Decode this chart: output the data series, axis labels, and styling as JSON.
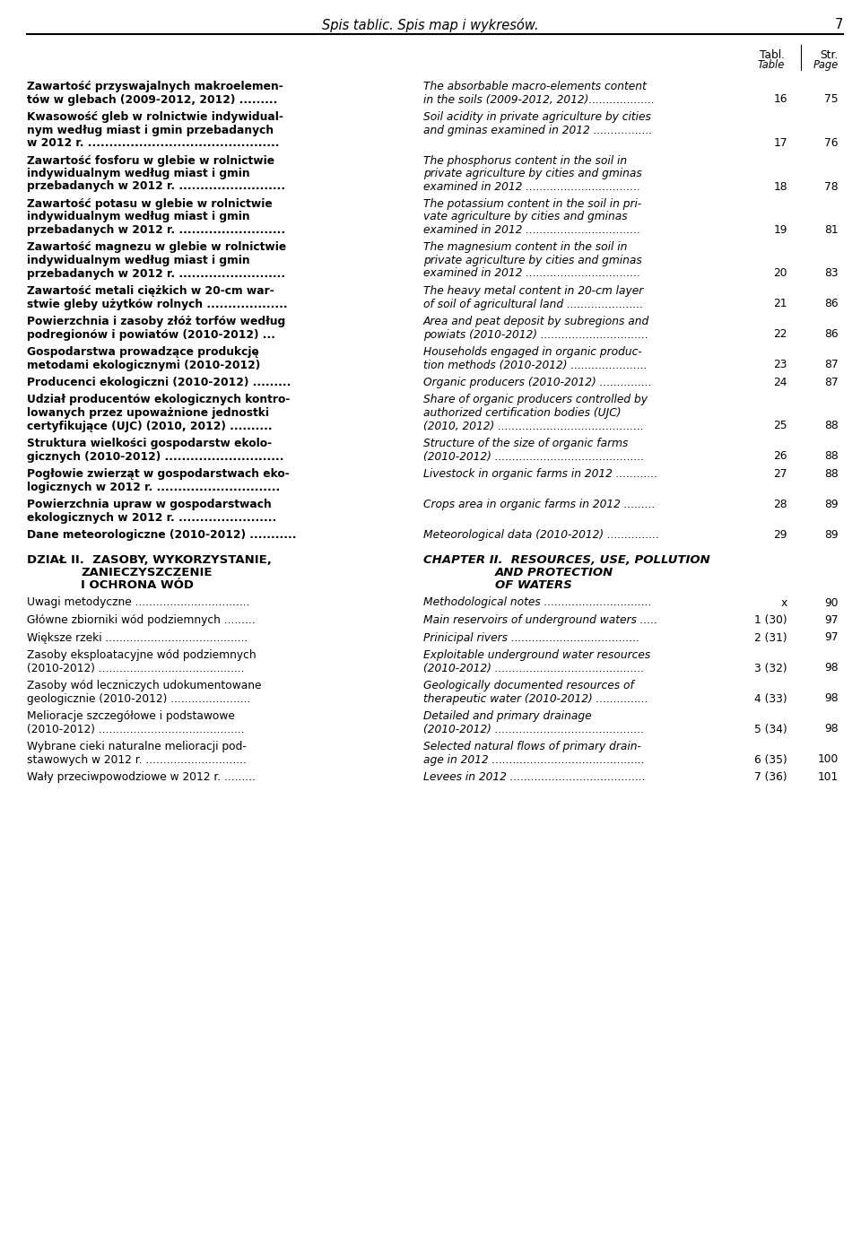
{
  "page_header": "Spis tablic. Spis map i wykresów.",
  "page_number": "7",
  "entries": [
    {
      "pl_lines": [
        "Zawartość przyswajalnych makroelemen-",
        "tów w glebach (2009-2012, 2012) ........."
      ],
      "en_lines": [
        "The absorbable macro-elements content",
        "in the soils (2009-2012, 2012)..................."
      ],
      "tabl": "16",
      "str_": "75",
      "num_row": 1
    },
    {
      "pl_lines": [
        "Kwasowość gleb w rolnictwie indywidual-",
        "nym według miast i gmin przebadanych",
        "w 2012 r. ............................................."
      ],
      "en_lines": [
        "Soil acidity in private agriculture by cities",
        "and gminas examined in 2012 ................."
      ],
      "tabl": "17",
      "str_": "76",
      "num_row": 2
    },
    {
      "pl_lines": [
        "Zawartość fosforu w glebie w rolnictwie",
        "indywidualnym według miast i gmin",
        "przebadanych w 2012 r. ........................."
      ],
      "en_lines": [
        "The phosphorus content in the soil in",
        "private agriculture by cities and gminas",
        "examined in 2012 ................................."
      ],
      "tabl": "18",
      "str_": "78",
      "num_row": 2
    },
    {
      "pl_lines": [
        "Zawartość potasu w glebie w rolnictwie",
        "indywidualnym według miast i gmin",
        "przebadanych w 2012 r. ........................."
      ],
      "en_lines": [
        "The potassium content in the soil in pri-",
        "vate agriculture by cities and gminas",
        "examined in 2012 ................................."
      ],
      "tabl": "19",
      "str_": "81",
      "num_row": 2
    },
    {
      "pl_lines": [
        "Zawartość magnezu w glebie w rolnictwie",
        "indywidualnym według miast i gmin",
        "przebadanych w 2012 r. ........................."
      ],
      "en_lines": [
        "The magnesium content in the soil in",
        "private agriculture by cities and gminas",
        "examined in 2012 ................................."
      ],
      "tabl": "20",
      "str_": "83",
      "num_row": 2
    },
    {
      "pl_lines": [
        "Zawartość metali ciężkich w 20-cm war-",
        "stwie gleby użytków rolnych ..................."
      ],
      "en_lines": [
        "The heavy metal content in 20-cm layer",
        "of soil of agricultural land ......................"
      ],
      "tabl": "21",
      "str_": "86",
      "num_row": 1
    },
    {
      "pl_lines": [
        "Powierzchnia i zasoby złóż torfów według",
        "podregionów i powiatów (2010-2012) ..."
      ],
      "en_lines": [
        "Area and peat deposit by subregions and",
        "powiats (2010-2012) ..............................."
      ],
      "tabl": "22",
      "str_": "86",
      "num_row": 1
    },
    {
      "pl_lines": [
        "Gospodarstwa prowadzące produkcję",
        "metodami ekologicznymi (2010-2012)"
      ],
      "en_lines": [
        "Households engaged in organic produc-",
        "tion methods (2010-2012) ......................"
      ],
      "tabl": "23",
      "str_": "87",
      "num_row": 1
    },
    {
      "pl_lines": [
        "Producenci ekologiczni (2010-2012) ........."
      ],
      "en_lines": [
        "Organic producers (2010-2012) ..............."
      ],
      "tabl": "24",
      "str_": "87",
      "num_row": 0
    },
    {
      "pl_lines": [
        "Udział producentów ekologicznych kontro-",
        "lowanych przez upoważnione jednostki",
        "certyfikujące (UJC) (2010, 2012) .........."
      ],
      "en_lines": [
        "Share of organic producers controlled by",
        "authorized certification bodies (UJC)",
        "(2010, 2012) .........................................."
      ],
      "tabl": "25",
      "str_": "88",
      "num_row": 2
    },
    {
      "pl_lines": [
        "Struktura wielkości gospodarstw ekolo-",
        "gicznych (2010-2012) ............................"
      ],
      "en_lines": [
        "Structure of the size of organic farms",
        "(2010-2012) ..........................................."
      ],
      "tabl": "26",
      "str_": "88",
      "num_row": 1
    },
    {
      "pl_lines": [
        "Pogłowie zwierząt w gospodarstwach eko-",
        "logicznych w 2012 r. ............................."
      ],
      "en_lines": [
        "Livestock in organic farms in 2012 ............"
      ],
      "tabl": "27",
      "str_": "88",
      "num_row": 0
    },
    {
      "pl_lines": [
        "Powierzchnia upraw w gospodarstwach",
        "ekologicznych w 2012 r. ......................."
      ],
      "en_lines": [
        "Crops area in organic farms in 2012 ........."
      ],
      "tabl": "28",
      "str_": "89",
      "num_row": 0
    },
    {
      "pl_lines": [
        "Dane meteorologiczne (2010-2012) ..........."
      ],
      "en_lines": [
        "Meteorological data (2010-2012) ..............."
      ],
      "tabl": "29",
      "str_": "89",
      "num_row": 0
    }
  ],
  "section_entries": [
    {
      "pl_lines": [
        "Uwagi metodyczne ................................."
      ],
      "en_lines": [
        "Methodological notes ..............................."
      ],
      "tabl": "x",
      "str_": "90",
      "num_row": 0
    },
    {
      "pl_lines": [
        "Główne zbiorniki wód podziemnych ........."
      ],
      "en_lines": [
        "Main reservoirs of underground waters ....."
      ],
      "tabl": "1 (30)",
      "str_": "97",
      "num_row": 0
    },
    {
      "pl_lines": [
        "Większe rzeki ........................................."
      ],
      "en_lines": [
        "Prinicipal rivers ....................................."
      ],
      "tabl": "2 (31)",
      "str_": "97",
      "num_row": 0
    },
    {
      "pl_lines": [
        "Zasoby eksploatacyjne wód podziemnych",
        "(2010-2012) .........................................."
      ],
      "en_lines": [
        "Exploitable underground water resources",
        "(2010-2012) ..........................................."
      ],
      "tabl": "3 (32)",
      "str_": "98",
      "num_row": 1
    },
    {
      "pl_lines": [
        "Zasoby wód leczniczych udokumentowane",
        "geologicznie (2010-2012) ......................."
      ],
      "en_lines": [
        "Geologically documented resources of",
        "therapeutic water (2010-2012) ..............."
      ],
      "tabl": "4 (33)",
      "str_": "98",
      "num_row": 1
    },
    {
      "pl_lines": [
        "Melioracje szczegółowe i podstawowe",
        "(2010-2012) .........................................."
      ],
      "en_lines": [
        "Detailed and primary drainage",
        "(2010-2012) ..........................................."
      ],
      "tabl": "5 (34)",
      "str_": "98",
      "num_row": 1
    },
    {
      "pl_lines": [
        "Wybrane cieki naturalne melioracji pod-",
        "stawowych w 2012 r. ............................."
      ],
      "en_lines": [
        "Selected natural flows of primary drain-",
        "age in 2012 ............................................"
      ],
      "tabl": "6 (35)",
      "str_": "100",
      "num_row": 1
    },
    {
      "pl_lines": [
        "Wały przeciwpowodziowe w 2012 r. ........."
      ],
      "en_lines": [
        "Levees in 2012 ......................................."
      ],
      "tabl": "7 (36)",
      "str_": "101",
      "num_row": 0
    }
  ]
}
